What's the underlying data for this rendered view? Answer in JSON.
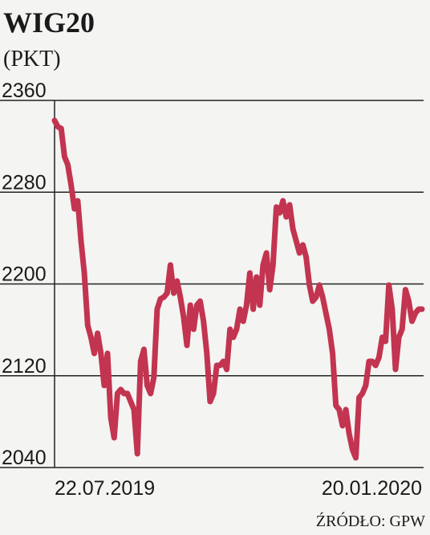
{
  "chart_data": {
    "type": "line",
    "title": "WIG20",
    "subtitle": "(PKT)",
    "source": "ŹRÓDŁO: GPW",
    "categories": [
      "22.07.2019",
      null,
      null,
      null,
      null,
      null,
      null,
      null,
      null,
      null,
      null,
      null,
      null,
      null,
      null,
      null,
      null,
      null,
      null,
      null,
      null,
      null,
      null,
      null,
      null,
      null,
      null,
      null,
      null,
      null,
      null,
      null,
      null,
      null,
      null,
      null,
      null,
      null,
      null,
      null,
      null,
      null,
      null,
      null,
      null,
      null,
      null,
      null,
      null,
      null,
      null,
      null,
      null,
      null,
      null,
      null,
      null,
      null,
      null,
      null,
      null,
      null,
      null,
      null,
      null,
      null,
      null,
      null,
      null,
      null,
      null,
      null,
      null,
      null,
      null,
      null,
      null,
      null,
      null,
      null,
      null,
      null,
      null,
      null,
      null,
      null,
      null,
      null,
      null,
      null,
      null,
      null,
      null,
      null,
      null,
      null,
      null,
      null,
      null,
      null,
      null,
      null,
      null,
      null,
      null,
      null,
      null,
      null,
      null,
      null,
      null,
      "20.01.2020"
    ],
    "series": [
      {
        "name": "WIG20",
        "color": "#c2344f",
        "values": [
          2342.5,
          2337,
          2335.5,
          2311,
          2304,
          2286.5,
          2265.5,
          2272.5,
          2237.5,
          2209.5,
          2164,
          2153.5,
          2139.5,
          2157,
          2139.5,
          2111.5,
          2139.5,
          2083.5,
          2066,
          2104.5,
          2108,
          2104.5,
          2104.5,
          2097.5,
          2090.5,
          2052,
          2132.5,
          2143,
          2111.5,
          2104.5,
          2118.5,
          2178,
          2187,
          2188.5,
          2192,
          2216.5,
          2192,
          2202.5,
          2188.5,
          2171,
          2146.5,
          2181.5,
          2160.5,
          2181.5,
          2185,
          2167.5,
          2139.5,
          2097.5,
          2104.5,
          2129,
          2129,
          2132.5,
          2125.5,
          2160.5,
          2153.5,
          2160.5,
          2178,
          2167.5,
          2181.5,
          2209.5,
          2178,
          2206,
          2181.5,
          2216.5,
          2227,
          2195,
          2216.5,
          2267,
          2262,
          2272.5,
          2258.5,
          2269,
          2248,
          2237.5,
          2227,
          2234,
          2223.5,
          2199,
          2185,
          2188.5,
          2199,
          2188.5,
          2174.5,
          2160.5,
          2139.5,
          2094,
          2090.5,
          2076.5,
          2090.5,
          2069.5,
          2055.5,
          2048.5,
          2101,
          2104.5,
          2111.5,
          2132.5,
          2132.5,
          2129,
          2136,
          2153.5,
          2150,
          2199,
          2178,
          2125.5,
          2153.5,
          2160.5,
          2195,
          2185,
          2167.5,
          2174.5,
          2178,
          2178
        ]
      }
    ],
    "ylim": [
      2040,
      2360
    ],
    "yticks": [
      2040,
      2120,
      2200,
      2280,
      2360
    ],
    "grid": true
  }
}
